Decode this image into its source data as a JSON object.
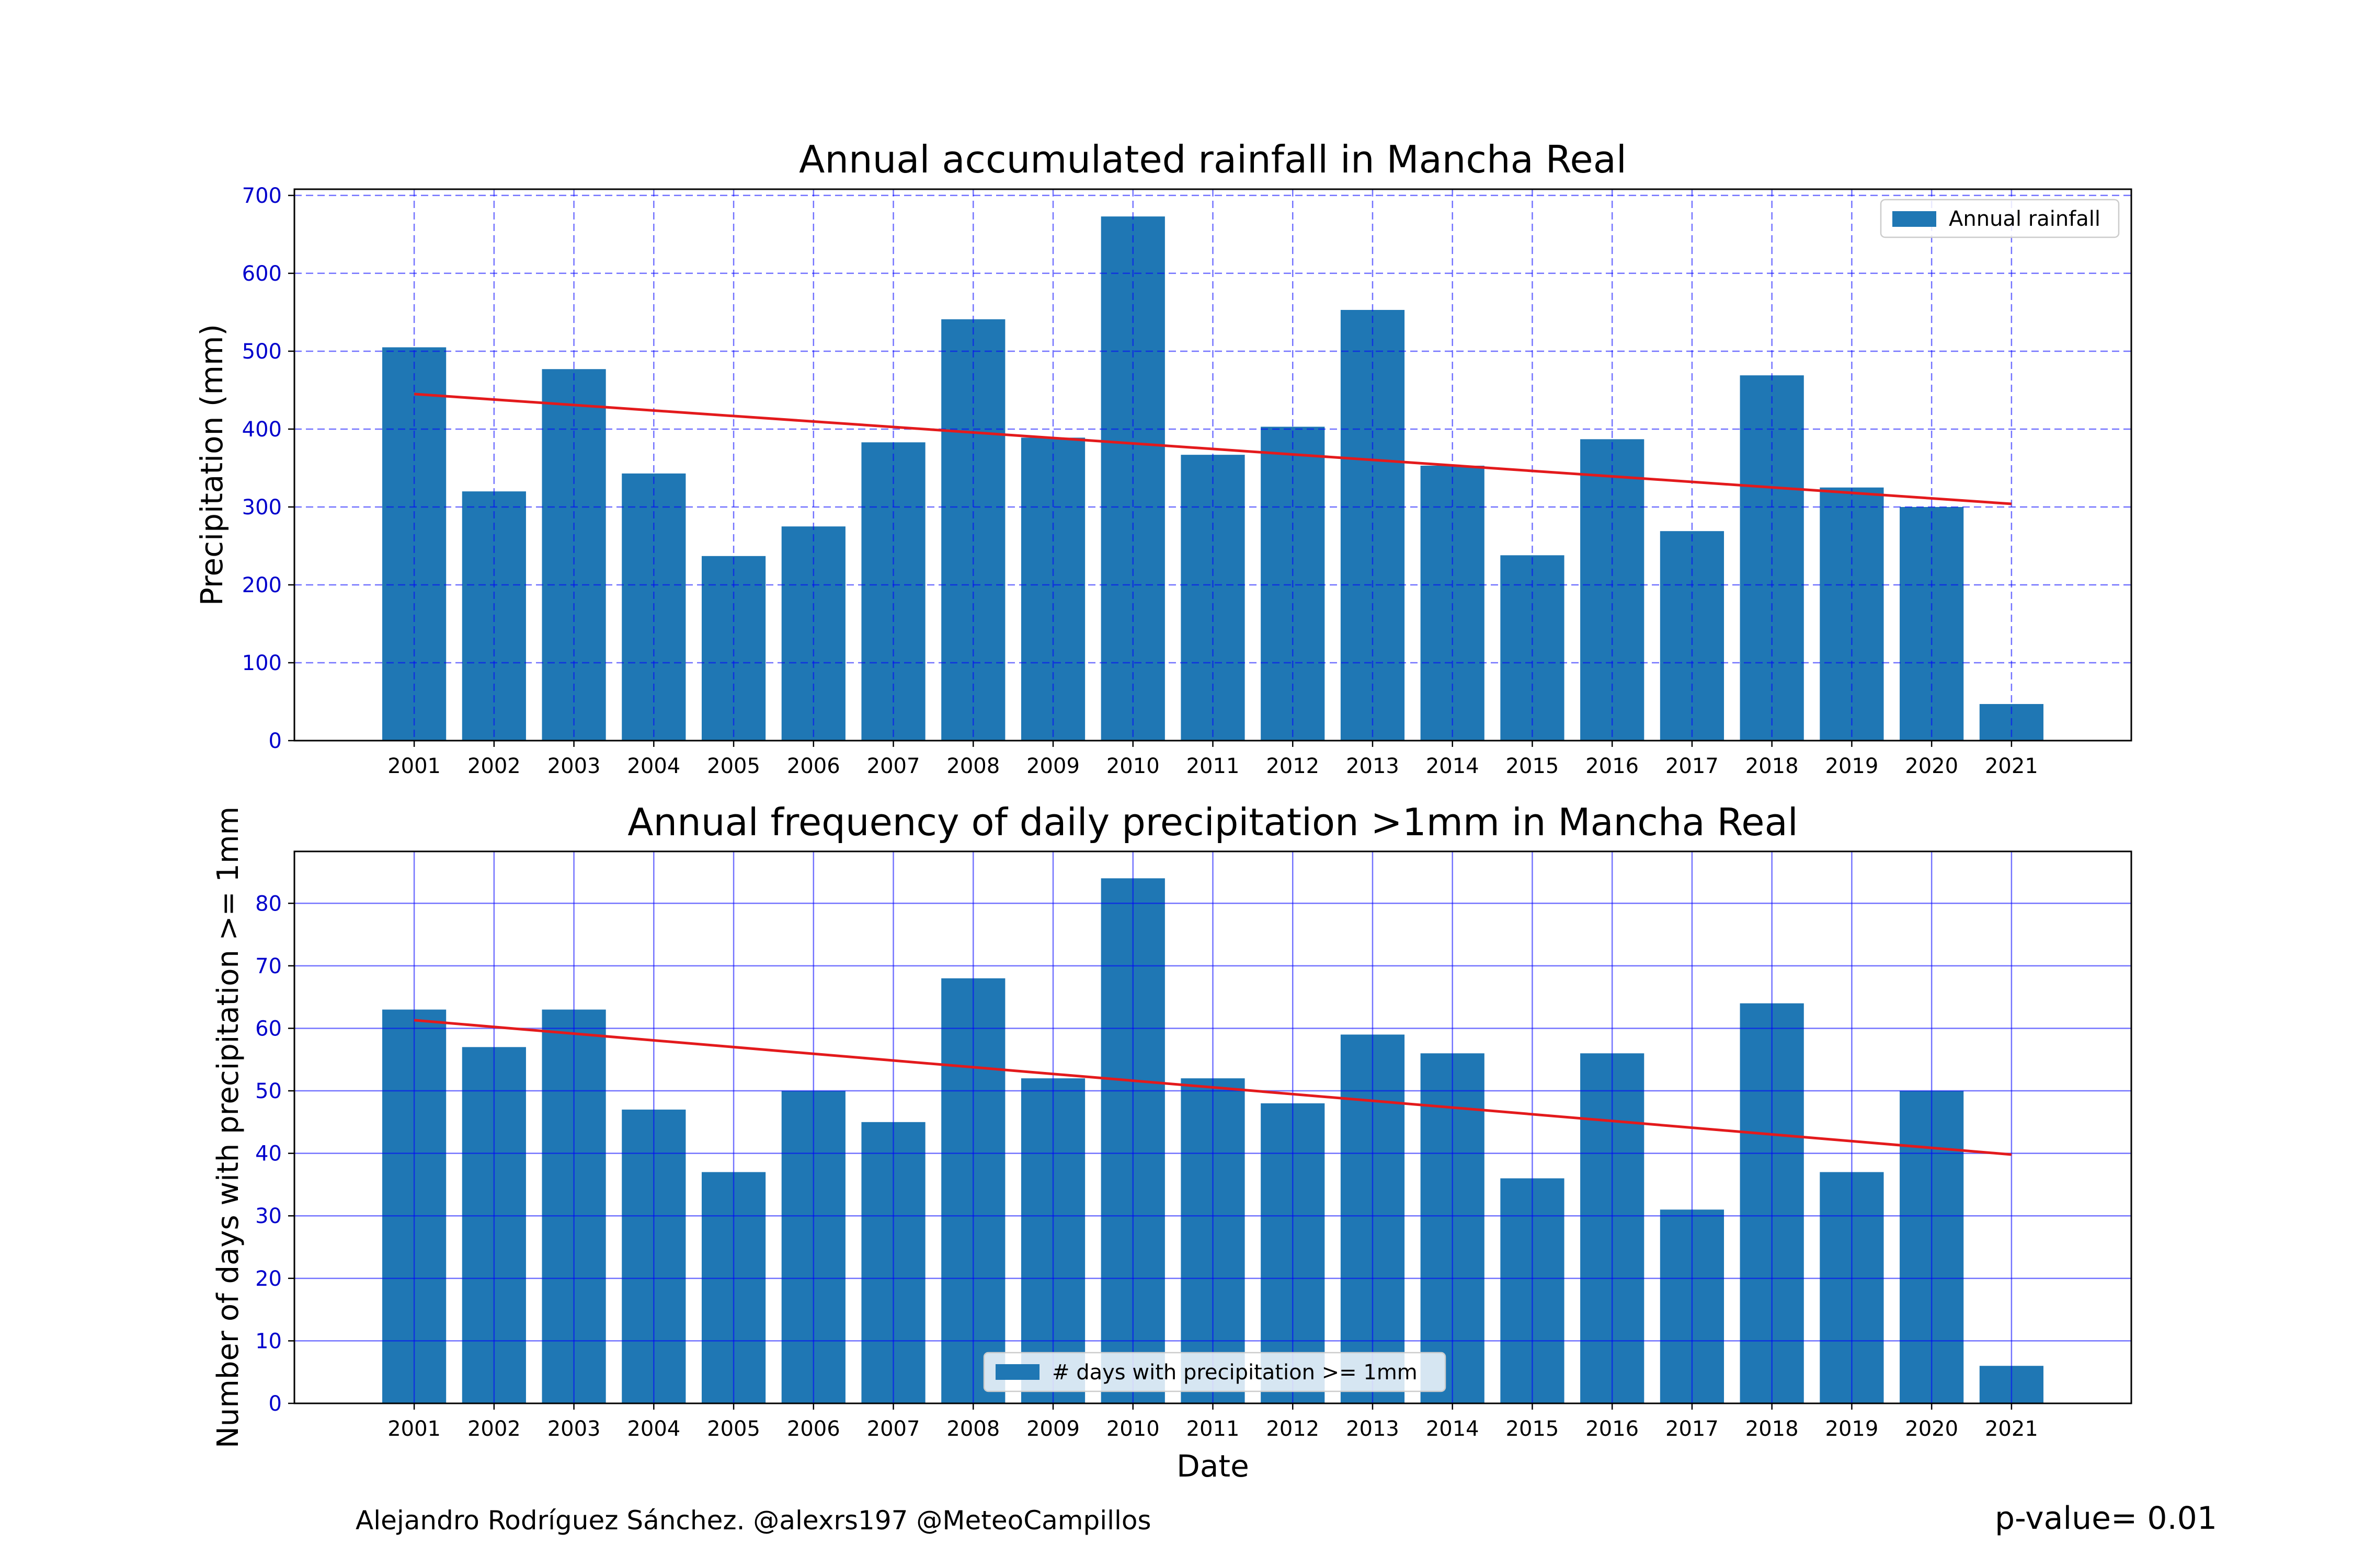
{
  "chart_data": [
    {
      "type": "bar",
      "title": "Annual accumulated rainfall in Mancha Real",
      "xlabel": "",
      "ylabel": "Precipitation (mm)",
      "categories": [
        "2001",
        "2002",
        "2003",
        "2004",
        "2005",
        "2006",
        "2007",
        "2008",
        "2009",
        "2010",
        "2011",
        "2012",
        "2013",
        "2014",
        "2015",
        "2016",
        "2017",
        "2018",
        "2019",
        "2020",
        "2021"
      ],
      "series": [
        {
          "name": "Annual rainfall",
          "values": [
            505,
            320,
            477,
            343,
            237,
            275,
            383,
            541,
            389,
            673,
            367,
            403,
            553,
            353,
            238,
            387,
            269,
            469,
            325,
            300,
            47
          ],
          "color": "#1f77b4"
        }
      ],
      "trend": {
        "start": 445,
        "end": 304,
        "color": "#e31a1c"
      },
      "ylim": [
        0,
        708
      ],
      "yticks": [
        0,
        100,
        200,
        300,
        400,
        500,
        600,
        700
      ],
      "grid": true,
      "grid_style": "dashed",
      "grid_color": "#0000ff",
      "tick_color": "#0000cc",
      "legend": {
        "placement": "top-right",
        "label": "Annual rainfall"
      }
    },
    {
      "type": "bar",
      "title": "Annual frequency of daily precipitation >1mm in Mancha Real",
      "xlabel": "Date",
      "ylabel": "Number of days with precipitation >= 1mm",
      "categories": [
        "2001",
        "2002",
        "2003",
        "2004",
        "2005",
        "2006",
        "2007",
        "2008",
        "2009",
        "2010",
        "2011",
        "2012",
        "2013",
        "2014",
        "2015",
        "2016",
        "2017",
        "2018",
        "2019",
        "2020",
        "2021"
      ],
      "series": [
        {
          "name": "# days with precipitation >= 1mm",
          "values": [
            63,
            57,
            63,
            47,
            37,
            50,
            45,
            68,
            52,
            84,
            52,
            48,
            59,
            56,
            36,
            56,
            31,
            64,
            37,
            50,
            6
          ],
          "color": "#1f77b4"
        }
      ],
      "trend": {
        "start": 61.3,
        "end": 39.8,
        "color": "#e31a1c"
      },
      "ylim": [
        0,
        88.3
      ],
      "yticks": [
        0,
        10,
        20,
        30,
        40,
        50,
        60,
        70,
        80
      ],
      "grid": true,
      "grid_style": "solid",
      "grid_color": "#0000ff",
      "tick_color": "#0000cc",
      "legend": {
        "placement": "bottom-center",
        "label": "# days with precipitation >= 1mm"
      }
    }
  ],
  "footer": {
    "credit": "Alejandro Rodríguez Sánchez. @alexrs197 @MeteoCampillos",
    "pvalue": "p-value= 0.01"
  }
}
